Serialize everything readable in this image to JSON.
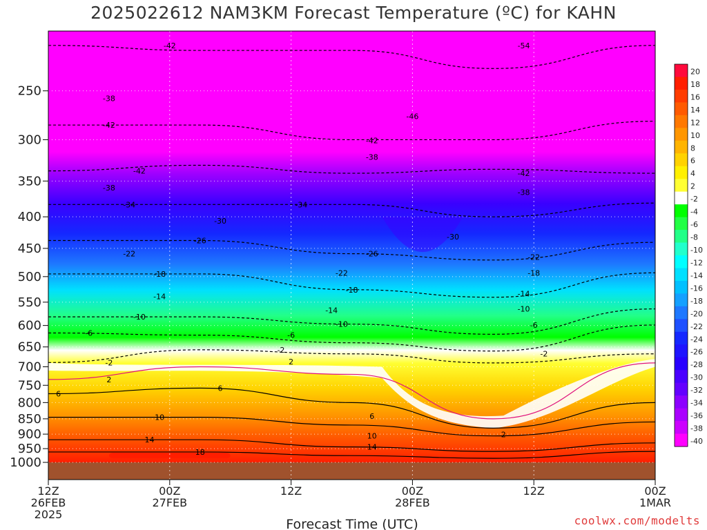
{
  "chart_data": {
    "type": "heatmap",
    "title": "2025022612 NAM3KM Forecast Temperature (ºC) for KAHN",
    "xlabel": "Forecast Time (UTC)",
    "ylabel": "",
    "x_ticks": [
      {
        "label": [
          "12Z",
          "26FEB",
          "2025"
        ],
        "hour": 0
      },
      {
        "label": [
          "00Z",
          "27FEB"
        ],
        "hour": 12
      },
      {
        "label": [
          "12Z"
        ],
        "hour": 24
      },
      {
        "label": [
          "00Z",
          "28FEB"
        ],
        "hour": 36
      },
      {
        "label": [
          "12Z"
        ],
        "hour": 48
      },
      {
        "label": [
          "00Z",
          "1MAR"
        ],
        "hour": 60
      }
    ],
    "xlim": [
      0,
      60
    ],
    "y_ticks": [
      250,
      300,
      350,
      400,
      450,
      500,
      550,
      600,
      650,
      700,
      750,
      800,
      850,
      900,
      950,
      1000
    ],
    "ylim_hPa": [
      200,
      1000
    ],
    "colorbar": {
      "levels": [
        "20",
        "18",
        "16",
        "14",
        "12",
        "10",
        "8",
        "6",
        "4",
        "2",
        "-2",
        "-4",
        "-6",
        "-8",
        "-10",
        "-12",
        "-14",
        "-16",
        "-18",
        "-20",
        "-22",
        "-24",
        "-26",
        "-28",
        "-30",
        "-32",
        "-34",
        "-36",
        "-38",
        "-40"
      ],
      "colors": [
        "#ff0a3c",
        "#ff1e00",
        "#ff3c00",
        "#ff5a00",
        "#ff7800",
        "#ff9600",
        "#ffb400",
        "#ffd200",
        "#fff000",
        "#ffff33",
        "#ffffff",
        "#00ff00",
        "#22ff44",
        "#22ff88",
        "#22ffcc",
        "#00ffff",
        "#00e0ff",
        "#00c0ff",
        "#14a0ff",
        "#1e78ff",
        "#1e50ff",
        "#1428ff",
        "#1e14ff",
        "#2800ff",
        "#4a00ff",
        "#6400ff",
        "#8c00ff",
        "#aa00ff",
        "#cc00ff",
        "#ff00ff"
      ]
    },
    "contour_labels": [
      {
        "text": "-42",
        "h": 12,
        "p": 211
      },
      {
        "text": "-54",
        "h": 47,
        "p": 211
      },
      {
        "text": "-38",
        "h": 6,
        "p": 257
      },
      {
        "text": "-42",
        "h": 6,
        "p": 284
      },
      {
        "text": "-46",
        "h": 36,
        "p": 275
      },
      {
        "text": "-42",
        "h": 32,
        "p": 301
      },
      {
        "text": "-38",
        "h": 32,
        "p": 320
      },
      {
        "text": "-42",
        "h": 9,
        "p": 337
      },
      {
        "text": "-42",
        "h": 47,
        "p": 340
      },
      {
        "text": "-38",
        "h": 6,
        "p": 359
      },
      {
        "text": "-38",
        "h": 47,
        "p": 365
      },
      {
        "text": "-34",
        "h": 8,
        "p": 382
      },
      {
        "text": "-34",
        "h": 25,
        "p": 382
      },
      {
        "text": "-30",
        "h": 17,
        "p": 406
      },
      {
        "text": "-30",
        "h": 40,
        "p": 431
      },
      {
        "text": "-26",
        "h": 15,
        "p": 437
      },
      {
        "text": "-26",
        "h": 32,
        "p": 459
      },
      {
        "text": "-22",
        "h": 8,
        "p": 459
      },
      {
        "text": "-22",
        "h": 48,
        "p": 465
      },
      {
        "text": "-22",
        "h": 29,
        "p": 493
      },
      {
        "text": "-18",
        "h": 11,
        "p": 495
      },
      {
        "text": "-18",
        "h": 48,
        "p": 493
      },
      {
        "text": "-18",
        "h": 30,
        "p": 525
      },
      {
        "text": "-14",
        "h": 11,
        "p": 538
      },
      {
        "text": "-14",
        "h": 47,
        "p": 533
      },
      {
        "text": "-14",
        "h": 28,
        "p": 567
      },
      {
        "text": "-10",
        "h": 9,
        "p": 581
      },
      {
        "text": "-10",
        "h": 47,
        "p": 564
      },
      {
        "text": "-10",
        "h": 29,
        "p": 597
      },
      {
        "text": "-6",
        "h": 4,
        "p": 617
      },
      {
        "text": "-6",
        "h": 24,
        "p": 622
      },
      {
        "text": "-6",
        "h": 48,
        "p": 599
      },
      {
        "text": "-2",
        "h": 23,
        "p": 657
      },
      {
        "text": "-2",
        "h": 49,
        "p": 667
      },
      {
        "text": "-2",
        "h": 6,
        "p": 689
      },
      {
        "text": "2",
        "h": 24,
        "p": 687
      },
      {
        "text": "2",
        "h": 6,
        "p": 734
      },
      {
        "text": "6",
        "h": 1,
        "p": 774
      },
      {
        "text": "6",
        "h": 17,
        "p": 758
      },
      {
        "text": "6",
        "h": 32,
        "p": 842
      },
      {
        "text": "10",
        "h": 11,
        "p": 845
      },
      {
        "text": "10",
        "h": 32,
        "p": 906
      },
      {
        "text": "2",
        "h": 45,
        "p": 901
      },
      {
        "text": "14",
        "h": 10,
        "p": 919
      },
      {
        "text": "14",
        "h": 32,
        "p": 944
      },
      {
        "text": "18",
        "h": 15,
        "p": 962
      }
    ]
  },
  "credit": "coolwx.com/modelts"
}
